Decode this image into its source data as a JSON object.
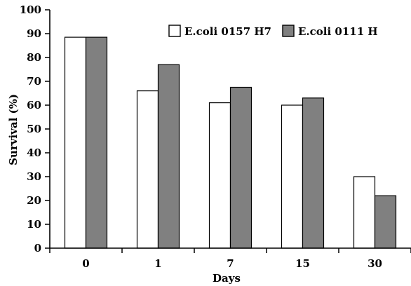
{
  "chart_data": {
    "type": "bar",
    "title": "",
    "xlabel": "Days",
    "ylabel": "Survival (%)",
    "categories": [
      "0",
      "1",
      "7",
      "15",
      "30"
    ],
    "ylim": [
      0,
      100
    ],
    "yticks": [
      0,
      10,
      20,
      30,
      40,
      50,
      60,
      70,
      80,
      90,
      100
    ],
    "grid": false,
    "legend_position": "top-right",
    "series": [
      {
        "name": "E.coli 0157 H7",
        "color": "#ffffff",
        "values": [
          88.5,
          66,
          61,
          60,
          30
        ]
      },
      {
        "name": "E.coli 0111 H",
        "color": "#808080",
        "values": [
          88.5,
          77,
          67.5,
          63,
          22
        ]
      }
    ]
  }
}
